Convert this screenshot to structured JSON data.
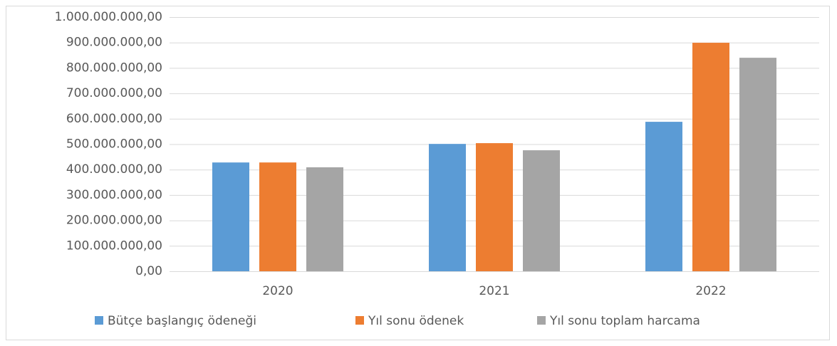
{
  "chart_data": {
    "type": "bar",
    "categories": [
      "2020",
      "2021",
      "2022"
    ],
    "series": [
      {
        "name": "Bütçe başlangıç ödeneği",
        "color": "#5b9bd5",
        "values": [
          428000000,
          501000000,
          588000000
        ]
      },
      {
        "name": "Yıl sonu ödenek",
        "color": "#ed7d31",
        "values": [
          428000000,
          504000000,
          899000000
        ]
      },
      {
        "name": "Yıl sonu toplam harcama",
        "color": "#a5a5a5",
        "values": [
          409000000,
          476000000,
          840000000
        ]
      }
    ],
    "ylim": [
      0,
      1000000000
    ],
    "yticks": [
      {
        "value": 0,
        "label": "0,00"
      },
      {
        "value": 100000000,
        "label": "100.000.000,00"
      },
      {
        "value": 200000000,
        "label": "200.000.000,00"
      },
      {
        "value": 300000000,
        "label": "300.000.000,00"
      },
      {
        "value": 400000000,
        "label": "400.000.000,00"
      },
      {
        "value": 500000000,
        "label": "500.000.000,00"
      },
      {
        "value": 600000000,
        "label": "600.000.000,00"
      },
      {
        "value": 700000000,
        "label": "700.000.000,00"
      },
      {
        "value": 800000000,
        "label": "800.000.000,00"
      },
      {
        "value": 900000000,
        "label": "900.000.000,00"
      },
      {
        "value": 1000000000,
        "label": "1.000.000.000,00"
      }
    ],
    "grid": true,
    "legend": "bottom"
  }
}
